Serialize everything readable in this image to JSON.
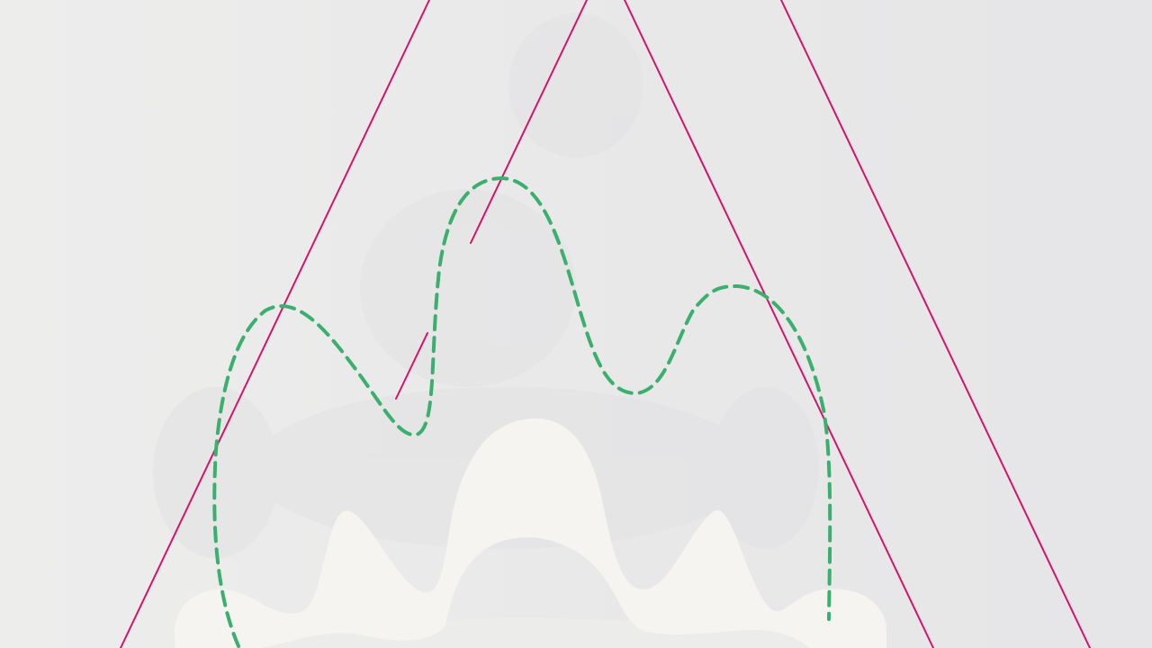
{
  "colors": {
    "background": "#ebebea",
    "cloud": "#e3e3e5",
    "cream_shape": "#f6f4f0",
    "cream_shadow": "#ececeb",
    "magenta_line": "#d6136a",
    "green_dashed_outline": "#3aaf6e"
  },
  "elements": {
    "magenta_lines": "magenta-guide-lines",
    "dashed_outline": "green-dashed-wavy-outline",
    "cream_shape": "cream-wavy-shape"
  }
}
